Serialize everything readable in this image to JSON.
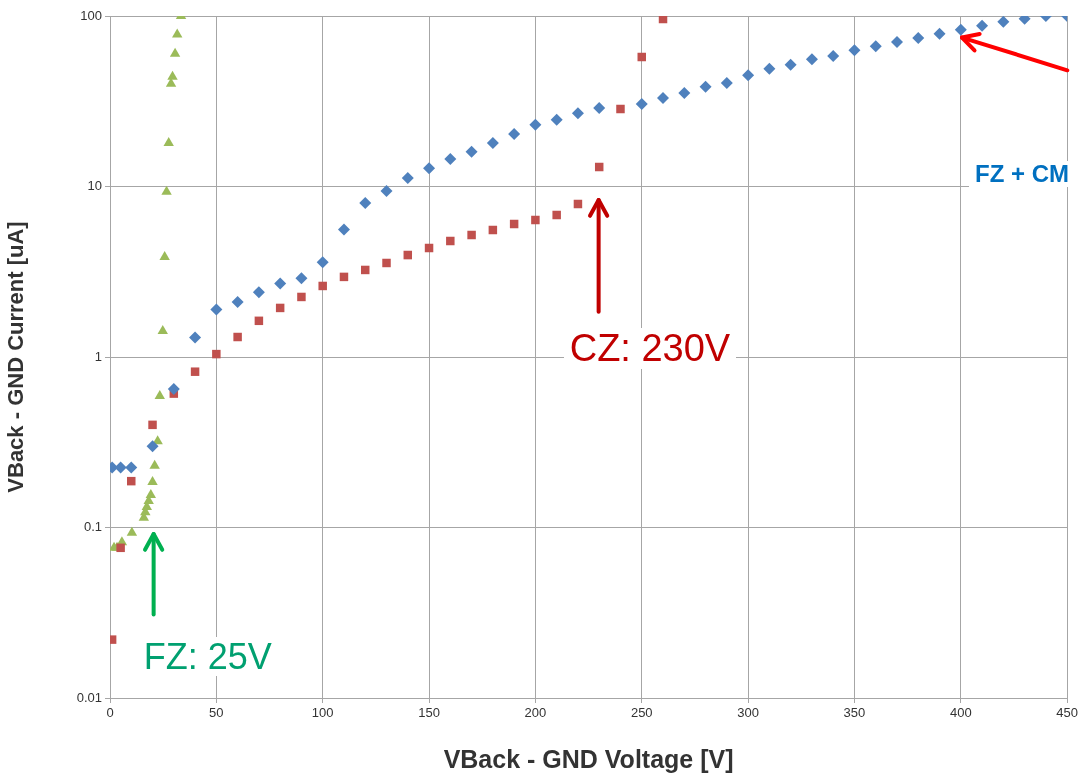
{
  "chart_data": {
    "type": "scatter",
    "xlabel": "VBack - GND Voltage [V]",
    "ylabel": "VBack - GND Current [uA]",
    "log": "y",
    "grid": true,
    "legend": false,
    "xlim": [
      0,
      450
    ],
    "xticks": [
      0,
      50,
      100,
      150,
      200,
      250,
      300,
      350,
      400,
      450
    ],
    "ylim": [
      0.01,
      100
    ],
    "yticks": [
      0.01,
      0.1,
      1,
      10,
      100
    ],
    "series": [
      {
        "color": "#4f81bd",
        "marker": "diamond",
        "x": [
          1,
          5,
          10,
          20,
          30,
          40,
          50,
          60,
          70,
          80,
          90,
          100,
          110,
          120,
          130,
          140,
          150,
          160,
          170,
          180,
          190,
          200,
          210,
          220,
          230,
          250,
          260,
          270,
          280,
          290,
          300,
          310,
          320,
          330,
          340,
          350,
          360,
          370,
          380,
          390,
          400,
          410,
          420,
          430,
          440,
          450
        ],
        "values": [
          0.225,
          0.225,
          0.225,
          0.3,
          0.65,
          1.3,
          1.9,
          2.1,
          2.4,
          2.7,
          2.9,
          3.6,
          5.6,
          8.0,
          9.4,
          11.2,
          12.8,
          14.5,
          16,
          18,
          20.3,
          23,
          24.6,
          26.9,
          28.9,
          30.5,
          33,
          35.3,
          38.4,
          40.4,
          45,
          49,
          51.8,
          55.8,
          58.3,
          63,
          66.5,
          70.3,
          74.3,
          78.6,
          83,
          87.6,
          92.5,
          96.3,
          100,
          100
        ]
      },
      {
        "color": "#c0504d",
        "marker": "square",
        "x": [
          1,
          5,
          10,
          20,
          30,
          40,
          50,
          60,
          70,
          80,
          90,
          100,
          110,
          120,
          130,
          140,
          150,
          160,
          170,
          180,
          190,
          200,
          210,
          220,
          230,
          240,
          250,
          260
        ],
        "values": [
          0.022,
          0.076,
          0.187,
          0.4,
          0.61,
          0.82,
          1.04,
          1.31,
          1.63,
          1.94,
          2.25,
          2.61,
          2.95,
          3.24,
          3.56,
          3.96,
          4.36,
          4.79,
          5.19,
          5.56,
          6.02,
          6.36,
          6.81,
          7.9,
          13,
          28.5,
          57.5,
          96
        ]
      },
      {
        "color": "#9bbb59",
        "marker": "triangle",
        "x": [
          1.9,
          3.3,
          5.6,
          10.3,
          15.9,
          16.6,
          17.3,
          18.2,
          19.2,
          20,
          21,
          22.4,
          23.4,
          24.8,
          25.7,
          26.6,
          27.6,
          28.7,
          29.4,
          30.6,
          31.6,
          33.4
        ],
        "values": [
          0.076,
          0.076,
          0.082,
          0.093,
          0.114,
          0.123,
          0.132,
          0.143,
          0.155,
          0.185,
          0.23,
          0.32,
          0.59,
          1.42,
          3.86,
          9.3,
          18,
          40,
          44,
          60,
          78,
          100
        ]
      }
    ],
    "annotations": [
      "FZ: 25V",
      "CZ: 230V",
      "FZ + CM"
    ]
  }
}
